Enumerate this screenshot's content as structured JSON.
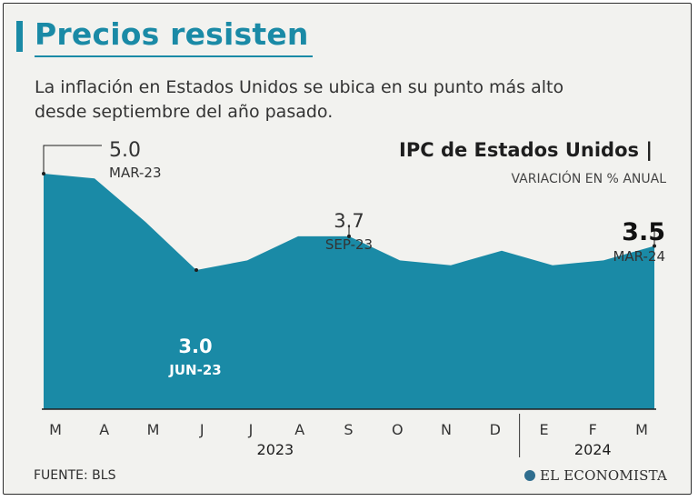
{
  "header": {
    "title": "Precios resisten",
    "subtitle": "La inflación en Estados Unidos se ubica en su punto más alto desde septiembre del año pasado."
  },
  "footer": {
    "source": "FUENTE: BLS",
    "brand": "EL ECONOMISTA"
  },
  "colors": {
    "accent": "#1a8aa6",
    "area": "#1a8aa6"
  },
  "chart_data": {
    "type": "area",
    "title": "IPC de Estados Unidos |",
    "subtitle": "VARIACIÓN EN % ANUAL",
    "categories": [
      "M",
      "A",
      "M",
      "J",
      "J",
      "A",
      "S",
      "O",
      "N",
      "D",
      "E",
      "F",
      "M"
    ],
    "years": [
      {
        "label": "2023",
        "from": 0,
        "to": 9
      },
      {
        "label": "2024",
        "from": 10,
        "to": 12
      }
    ],
    "values": [
      5.0,
      4.9,
      4.0,
      3.0,
      3.2,
      3.7,
      3.7,
      3.2,
      3.1,
      3.4,
      3.1,
      3.2,
      3.5
    ],
    "ylim": [
      0,
      5.0
    ],
    "annotations": [
      {
        "index": 0,
        "value": "5.0",
        "label": "MAR-23"
      },
      {
        "index": 3,
        "value": "3.0",
        "label": "JUN-23"
      },
      {
        "index": 6,
        "value": "3.7",
        "label": "SEP-23"
      },
      {
        "index": 12,
        "value": "3.5",
        "label": "MAR-24"
      }
    ]
  }
}
